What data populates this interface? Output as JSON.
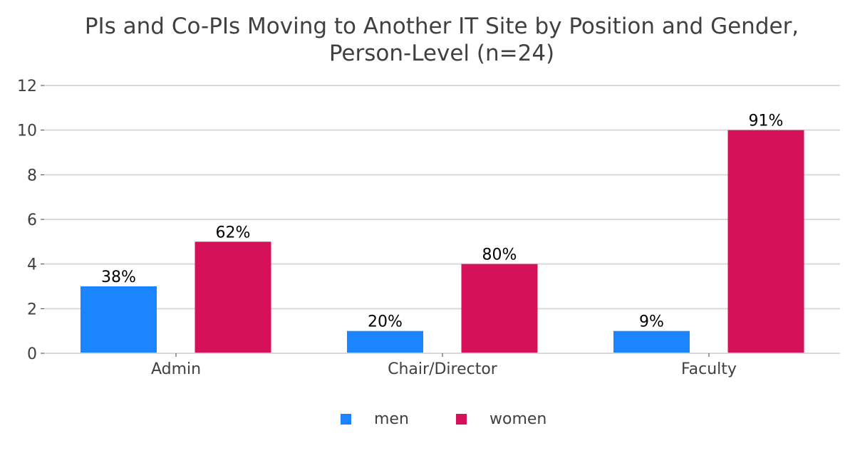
{
  "chart_data": {
    "type": "bar",
    "title_lines": [
      "PIs and Co-PIs Moving to Another IT Site by Position and Gender,",
      "Person-Level (n=24)"
    ],
    "categories": [
      "Admin",
      "Chair/Director",
      "Faculty"
    ],
    "series": [
      {
        "name": "men",
        "color": "#1a85ff",
        "values": [
          3,
          1,
          1
        ],
        "labels": [
          "38%",
          "20%",
          "9%"
        ]
      },
      {
        "name": "women",
        "color": "#d41159",
        "values": [
          5,
          4,
          10
        ],
        "labels": [
          "62%",
          "80%",
          "91%"
        ]
      }
    ],
    "ylim": [
      0,
      12
    ],
    "yticks": [
      0,
      2,
      4,
      6,
      8,
      10,
      12
    ],
    "grid": true,
    "legend_position": "bottom-center"
  }
}
